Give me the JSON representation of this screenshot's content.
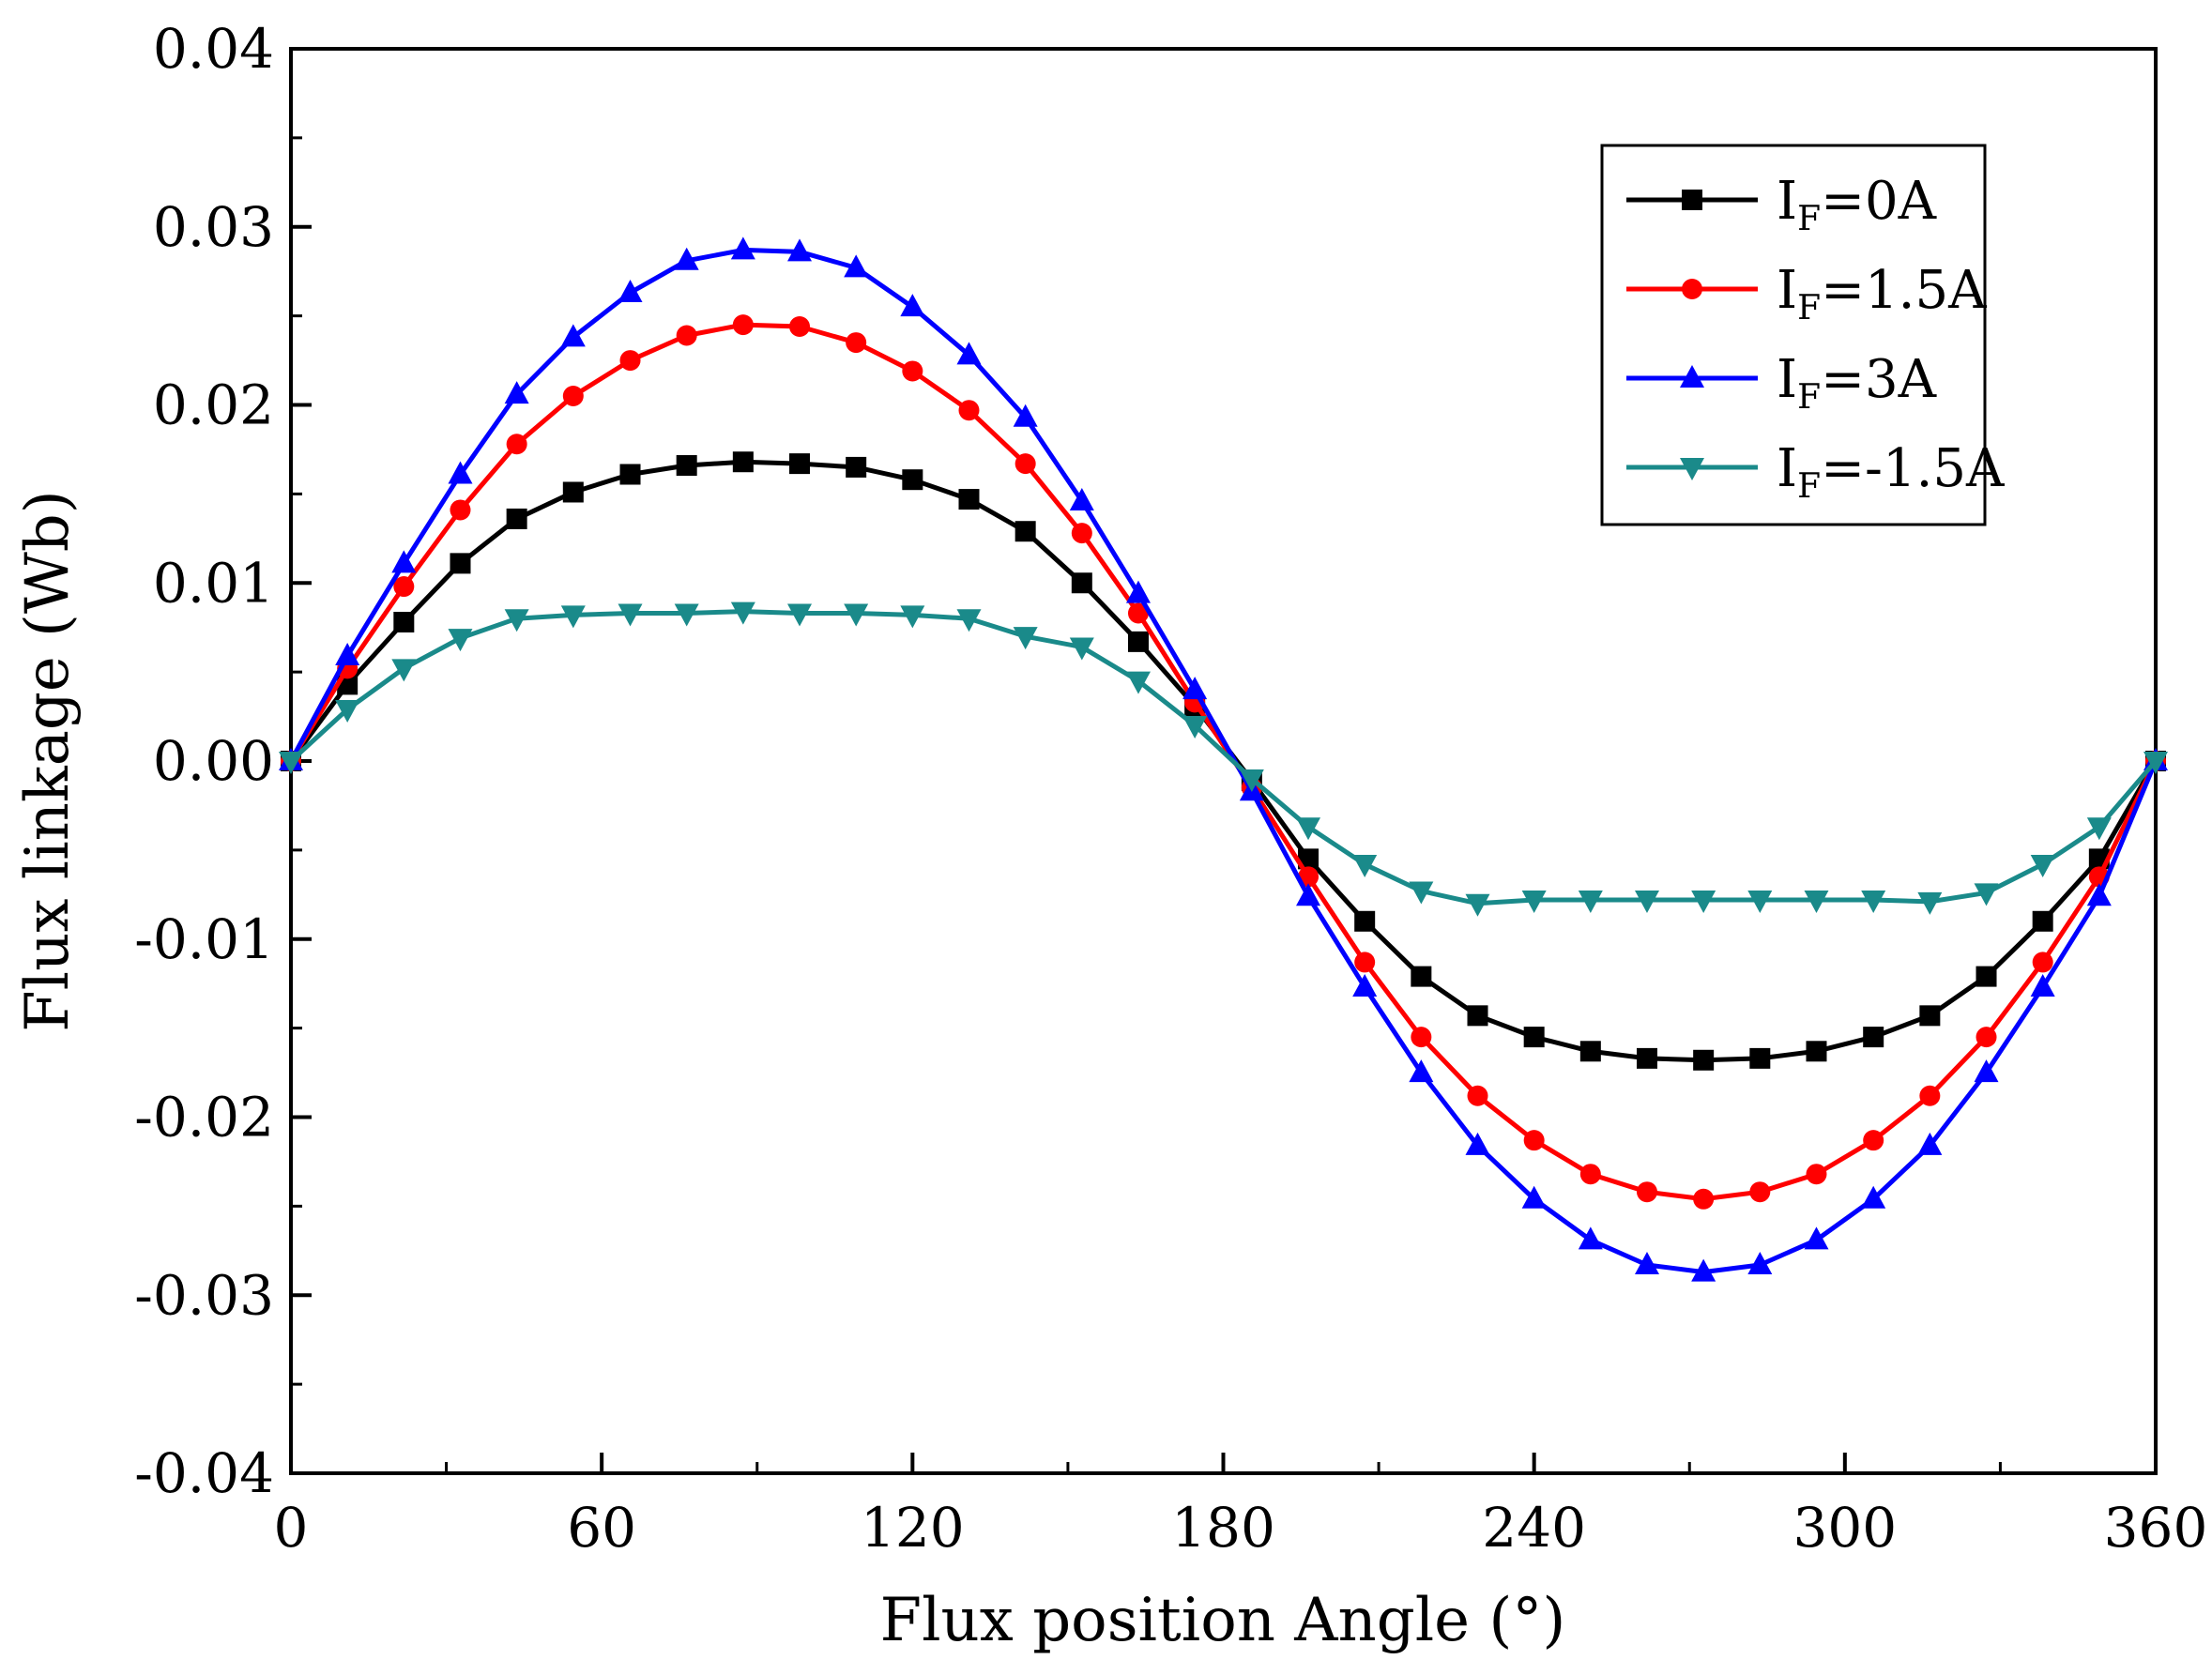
{
  "chart_data": {
    "type": "line",
    "title": "",
    "xlabel": "Flux position Angle (°)",
    "ylabel": "Flux linkage (Wb)",
    "xlim": [
      0,
      360
    ],
    "ylim": [
      -0.04,
      0.04
    ],
    "x_ticks": [
      0,
      60,
      120,
      180,
      240,
      300,
      360
    ],
    "x_tick_labels": [
      "0",
      "60",
      "120",
      "180",
      "240",
      "300",
      "360"
    ],
    "y_ticks": [
      0.04,
      0.03,
      0.02,
      0.01,
      0.0,
      -0.01,
      -0.02,
      -0.03,
      -0.04
    ],
    "y_tick_labels": [
      "0.04",
      "0.03",
      "0.02",
      "0.01",
      "0.00",
      "-0.01",
      "-0.02",
      "-0.03",
      "-0.04"
    ],
    "legend_position": "top-right",
    "x": [
      0,
      10.9,
      21.8,
      32.7,
      43.6,
      54.5,
      65.5,
      76.4,
      87.3,
      98.2,
      109.1,
      120,
      130.9,
      141.8,
      152.7,
      163.6,
      174.5,
      185.5,
      196.4,
      207.3,
      218.2,
      229.1,
      240,
      250.9,
      261.8,
      272.7,
      283.6,
      294.5,
      305.5,
      316.4,
      327.3,
      338.2,
      349.1,
      360
    ],
    "series": [
      {
        "name": "IF=0A",
        "label_main": "I",
        "label_sub": "F",
        "label_rest": "=0A",
        "color": "#000000",
        "marker": "square",
        "values": [
          0,
          0.0043,
          0.0078,
          0.0111,
          0.0136,
          0.0151,
          0.0161,
          0.0166,
          0.0168,
          0.0167,
          0.0165,
          0.0158,
          0.0147,
          0.0129,
          0.01,
          0.0067,
          0.0031,
          -0.0011,
          -0.0055,
          -0.009,
          -0.0121,
          -0.0143,
          -0.0155,
          -0.0163,
          -0.0167,
          -0.0168,
          -0.0167,
          -0.0163,
          -0.0155,
          -0.0143,
          -0.0121,
          -0.009,
          -0.0055,
          0
        ]
      },
      {
        "name": "IF=1.5A",
        "label_main": "I",
        "label_sub": "F",
        "label_rest": "=1.5A",
        "color": "#ff0000",
        "marker": "circle",
        "values": [
          0,
          0.0052,
          0.0098,
          0.0141,
          0.0178,
          0.0205,
          0.0225,
          0.0239,
          0.0245,
          0.0244,
          0.0235,
          0.0219,
          0.0197,
          0.0167,
          0.0128,
          0.0083,
          0.0033,
          -0.0015,
          -0.0065,
          -0.0113,
          -0.0155,
          -0.0188,
          -0.0213,
          -0.0232,
          -0.0242,
          -0.0246,
          -0.0242,
          -0.0232,
          -0.0213,
          -0.0188,
          -0.0155,
          -0.0113,
          -0.0065,
          0
        ]
      },
      {
        "name": "IF=3A",
        "label_main": "I",
        "label_sub": "F",
        "label_rest": "=3A",
        "color": "#0000ff",
        "marker": "triangle-up",
        "values": [
          0,
          0.0059,
          0.0111,
          0.0161,
          0.0206,
          0.0238,
          0.0263,
          0.0281,
          0.0287,
          0.0286,
          0.0277,
          0.0255,
          0.0228,
          0.0193,
          0.0146,
          0.0094,
          0.004,
          -0.0017,
          -0.0076,
          -0.0127,
          -0.0175,
          -0.0216,
          -0.0246,
          -0.0269,
          -0.0283,
          -0.0287,
          -0.0283,
          -0.0269,
          -0.0246,
          -0.0216,
          -0.0175,
          -0.0127,
          -0.0076,
          0
        ]
      },
      {
        "name": "IF=-1.5A",
        "label_main": "I",
        "label_sub": "F",
        "label_rest": "=-1.5A",
        "color": "#1a8a8a",
        "marker": "triangle-down",
        "values": [
          0,
          0.0029,
          0.0052,
          0.0069,
          0.008,
          0.0082,
          0.0083,
          0.0083,
          0.0084,
          0.0083,
          0.0083,
          0.0082,
          0.008,
          0.007,
          0.0064,
          0.0045,
          0.002,
          -0.001,
          -0.0037,
          -0.0058,
          -0.0073,
          -0.008,
          -0.0078,
          -0.0078,
          -0.0078,
          -0.0078,
          -0.0078,
          -0.0078,
          -0.0078,
          -0.0079,
          -0.0074,
          -0.0058,
          -0.0037,
          0
        ]
      }
    ]
  }
}
